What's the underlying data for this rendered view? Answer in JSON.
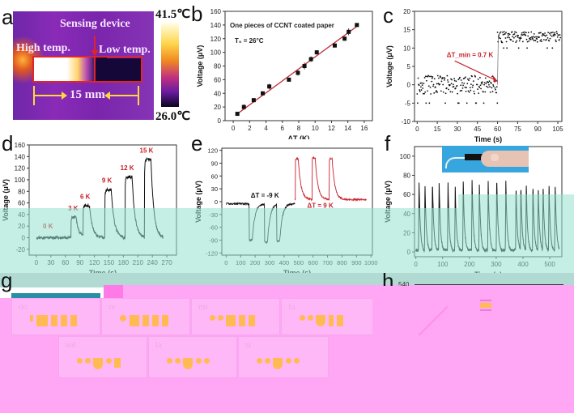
{
  "panels": {
    "a": {
      "letter": "a",
      "sensing_label": "Sensing device",
      "high_label": "High temp.",
      "low_label": "Low temp.",
      "length_label": "15 mm",
      "colorbar_max": "41.5℃",
      "colorbar_min": "26.0℃",
      "colors": {
        "hot": "#ffffff",
        "warm": "#ffa500",
        "mid": "#c13fa0",
        "cool": "#5a1a9c",
        "cold": "#0b0630",
        "highlight": "#e0242a",
        "arrow": "#ffd640"
      }
    },
    "b": {
      "letter": "b"
    },
    "c": {
      "letter": "c"
    },
    "d": {
      "letter": "d"
    },
    "e": {
      "letter": "e"
    },
    "f": {
      "letter": "f"
    },
    "g": {
      "letter": "g",
      "notes": [
        "do",
        "re",
        "mi",
        "fa",
        "sol",
        "la",
        "si"
      ]
    },
    "h": {
      "letter": "h",
      "ytick_top": "540"
    }
  },
  "chart_data": [
    {
      "id": "b",
      "type": "scatter",
      "title": "",
      "annotation": "One pieces of CCNT coated paper",
      "annotation2": "T₀ = 26°C",
      "xlabel": "ΔT (K)",
      "ylabel": "Voltage (μV)",
      "xlim": [
        -1,
        17
      ],
      "ylim": [
        0,
        160
      ],
      "xticks": [
        0,
        2,
        4,
        6,
        8,
        10,
        12,
        14,
        16
      ],
      "yticks": [
        0,
        20,
        40,
        60,
        80,
        100,
        120,
        140,
        160
      ],
      "x": [
        0.5,
        1.3,
        2.5,
        3.6,
        4.4,
        6.8,
        7.9,
        8.7,
        9.5,
        10.2,
        12.4,
        13.6,
        14.1,
        15.1
      ],
      "y": [
        10,
        20,
        30,
        40,
        50,
        60,
        70,
        80,
        90,
        100,
        110,
        120,
        130,
        140
      ],
      "yerr": [
        2,
        4,
        3,
        2,
        4,
        3,
        4,
        5,
        4,
        3,
        3,
        3,
        5,
        2
      ],
      "fit_line": {
        "x": [
          0.5,
          15.1
        ],
        "y": [
          10,
          138
        ],
        "color": "#c03038"
      },
      "marker_color": "#111111"
    },
    {
      "id": "c",
      "type": "scatter",
      "xlabel": "Time (s)",
      "ylabel": "Voltage (μV)",
      "xlim": [
        -2,
        108
      ],
      "ylim": [
        -10,
        20
      ],
      "xticks": [
        0,
        15,
        30,
        45,
        60,
        75,
        90,
        105
      ],
      "yticks": [
        -10,
        -5,
        0,
        5,
        10,
        15,
        20
      ],
      "annotation": "ΔT_min = 0.7 K",
      "annotation_color": "#c8202a",
      "arrow_target": {
        "x": 60,
        "y": 1
      },
      "segments": [
        {
          "x_range": [
            0,
            60
          ],
          "mean": 0,
          "noise": 2.5
        },
        {
          "x_range": [
            60,
            107
          ],
          "mean": 13,
          "noise": 1.5
        }
      ]
    },
    {
      "id": "d",
      "type": "line",
      "xlabel": "Time (s)",
      "ylabel": "Voltage (μV)",
      "xlim": [
        -15,
        290
      ],
      "ylim": [
        -30,
        160
      ],
      "xticks": [
        0,
        30,
        60,
        90,
        120,
        150,
        180,
        210,
        240,
        270
      ],
      "yticks": [
        -20,
        0,
        20,
        40,
        60,
        80,
        100,
        120,
        140,
        160
      ],
      "pulses": [
        {
          "label": "0 K",
          "start": 20,
          "end": 40,
          "peak": 4
        },
        {
          "label": "3 K",
          "start": 72,
          "end": 82,
          "peak": 35
        },
        {
          "label": "6 K",
          "start": 97,
          "end": 110,
          "peak": 55
        },
        {
          "label": "9 K",
          "start": 142,
          "end": 155,
          "peak": 83
        },
        {
          "label": "12 K",
          "start": 184,
          "end": 198,
          "peak": 105
        },
        {
          "label": "15 K",
          "start": 224,
          "end": 237,
          "peak": 135
        }
      ],
      "label_color": "#c8202a",
      "baseline": 0,
      "t_end": 262
    },
    {
      "id": "e",
      "type": "line",
      "xlabel": "Time (s)",
      "ylabel": "Voltage (μV)",
      "xlim": [
        -30,
        1010
      ],
      "ylim": [
        -125,
        125
      ],
      "xticks": [
        0,
        100,
        200,
        300,
        400,
        500,
        600,
        700,
        800,
        900,
        1000
      ],
      "yticks": [
        -120,
        -90,
        -60,
        -30,
        0,
        30,
        60,
        90,
        120
      ],
      "series": [
        {
          "name": "ΔT = -9 K",
          "color": "#111111",
          "baseline": -5,
          "pulses": [
            {
              "start": 160,
              "peak": -90
            },
            {
              "start": 265,
              "peak": -95
            },
            {
              "start": 350,
              "peak": -92
            }
          ],
          "t_start": 0,
          "t_end": 475
        },
        {
          "name": "ΔT = 9 K",
          "color": "#c8202a",
          "baseline": 5,
          "pulses": [
            {
              "start": 478,
              "peak": 100
            },
            {
              "start": 595,
              "peak": 102
            },
            {
              "start": 712,
              "peak": 100
            }
          ],
          "t_start": 475,
          "t_end": 970
        }
      ]
    },
    {
      "id": "f",
      "type": "line",
      "xlabel": "Time (s)",
      "ylabel": "Voltage (μV)",
      "xlim": [
        -5,
        545
      ],
      "ylim": [
        -5,
        110
      ],
      "xticks": [
        0,
        100,
        200,
        300,
        400,
        500
      ],
      "yticks": [
        0,
        20,
        40,
        60,
        80,
        100
      ],
      "pulse_times": [
        10,
        32,
        60,
        85,
        118,
        145,
        175,
        208,
        235,
        268,
        300,
        334,
        372,
        390,
        410,
        435,
        455,
        473,
        495,
        518
      ],
      "pulse_peaks": [
        72,
        70,
        75,
        73,
        72,
        68,
        72,
        75,
        70,
        73,
        78,
        73,
        68,
        70,
        72,
        70,
        68,
        70,
        73,
        72
      ],
      "color": "#111111",
      "inset": "finger touching sensor photo"
    }
  ]
}
